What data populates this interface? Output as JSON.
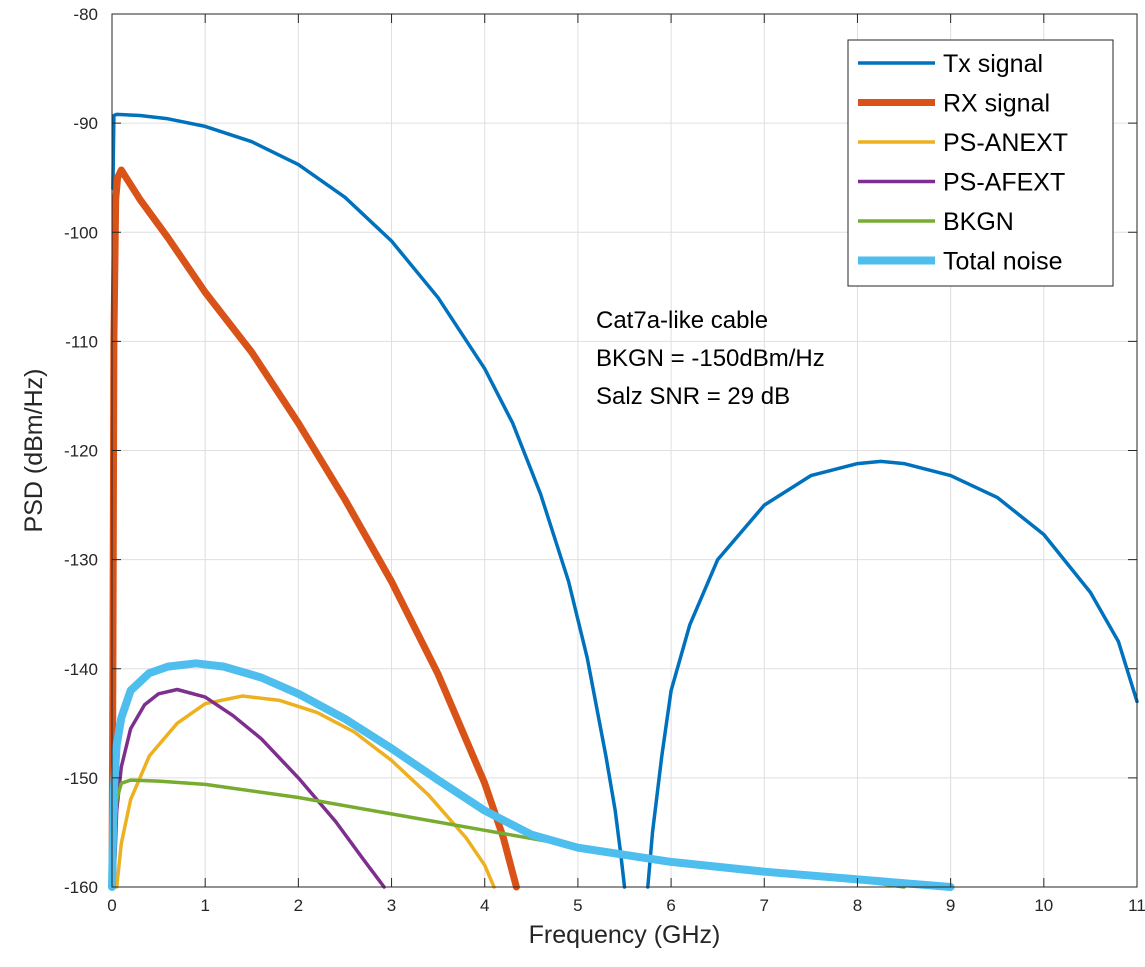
{
  "chart_data": {
    "type": "line",
    "title": "",
    "xlabel": "Frequency (GHz)",
    "ylabel": "PSD (dBm/Hz)",
    "xlim": [
      0,
      11
    ],
    "ylim": [
      -160,
      -80
    ],
    "xticks": [
      0,
      1,
      2,
      3,
      4,
      5,
      6,
      7,
      8,
      9,
      10,
      11
    ],
    "yticks": [
      -160,
      -150,
      -140,
      -130,
      -120,
      -110,
      -100,
      -90,
      -80
    ],
    "xtick_labels": [
      "0",
      "1",
      "2",
      "3",
      "4",
      "5",
      "6",
      "7",
      "8",
      "9",
      "10",
      "11"
    ],
    "ytick_labels": [
      "-160",
      "-150",
      "-140",
      "-130",
      "-120",
      "-110",
      "-100",
      "-90",
      "-80"
    ],
    "grid": true,
    "legend_position": "top-right",
    "annotation_lines": [
      "Cat7a-like cable",
      "BKGN = -150dBm/Hz",
      "Salz SNR = 29 dB"
    ],
    "series": [
      {
        "name": "Tx signal",
        "color": "#0072BD",
        "x": [
          0.01,
          0.02,
          0.05,
          0.3,
          0.6,
          1.0,
          1.5,
          2.0,
          2.5,
          3.0,
          3.5,
          4.0,
          4.3,
          4.6,
          4.9,
          5.1,
          5.3,
          5.4,
          5.46,
          5.5
        ],
        "y": [
          -96,
          -89.3,
          -89.2,
          -89.3,
          -89.6,
          -90.3,
          -91.7,
          -93.8,
          -96.8,
          -100.8,
          -106.0,
          -112.5,
          -117.5,
          -124.0,
          -132.0,
          -139.0,
          -148.0,
          -153.0,
          -157.0,
          -160.0
        ]
      },
      {
        "name": "Tx signal sidelobe",
        "color": "#0072BD",
        "x": [
          5.75,
          5.8,
          5.9,
          6.0,
          6.2,
          6.5,
          7.0,
          7.5,
          8.0,
          8.25,
          8.5,
          9.0,
          9.5,
          10.0,
          10.5,
          10.8,
          11.0
        ],
        "y": [
          -160.0,
          -155.0,
          -148.0,
          -142.0,
          -136.0,
          -130.0,
          -125.0,
          -122.3,
          -121.2,
          -121.0,
          -121.2,
          -122.3,
          -124.3,
          -127.7,
          -133.0,
          -137.5,
          -143.0
        ]
      },
      {
        "name": "RX signal",
        "color": "#D95319",
        "x": [
          0.0,
          0.01,
          0.02,
          0.04,
          0.06,
          0.1,
          0.3,
          0.6,
          1.0,
          1.5,
          2.0,
          2.5,
          3.0,
          3.5,
          4.0,
          4.2,
          4.34
        ],
        "y": [
          -160.0,
          -140.0,
          -110.0,
          -97.0,
          -95.0,
          -94.3,
          -97.0,
          -100.5,
          -105.5,
          -111.0,
          -117.5,
          -124.5,
          -132.0,
          -140.5,
          -150.5,
          -155.5,
          -160.0
        ]
      },
      {
        "name": "PS-ANEXT",
        "color": "#EDB120",
        "x": [
          0.05,
          0.1,
          0.2,
          0.4,
          0.7,
          1.0,
          1.4,
          1.8,
          2.2,
          2.6,
          3.0,
          3.4,
          3.8,
          4.0,
          4.1
        ],
        "y": [
          -160.0,
          -156.0,
          -152.0,
          -148.0,
          -145.0,
          -143.2,
          -142.5,
          -142.9,
          -144.0,
          -145.8,
          -148.4,
          -151.6,
          -155.5,
          -158.0,
          -160.0
        ]
      },
      {
        "name": "PS-AFEXT",
        "color": "#7E2F8E",
        "x": [
          0.02,
          0.05,
          0.1,
          0.2,
          0.35,
          0.5,
          0.7,
          1.0,
          1.3,
          1.6,
          2.0,
          2.4,
          2.7,
          2.92
        ],
        "y": [
          -160.0,
          -153.0,
          -149.0,
          -145.5,
          -143.3,
          -142.3,
          -141.9,
          -142.6,
          -144.3,
          -146.4,
          -150.0,
          -154.0,
          -157.5,
          -160.0
        ]
      },
      {
        "name": "BKGN",
        "color": "#77AC30",
        "x": [
          0.0,
          0.05,
          0.1,
          0.2,
          0.5,
          1.0,
          2.0,
          3.0,
          4.0,
          5.0,
          6.0,
          7.0,
          8.0,
          8.5
        ],
        "y": [
          -160.0,
          -152.0,
          -150.5,
          -150.2,
          -150.3,
          -150.6,
          -151.8,
          -153.3,
          -154.8,
          -156.3,
          -157.7,
          -158.6,
          -159.4,
          -160.0
        ]
      },
      {
        "name": "Total noise",
        "color": "#4DBEEE",
        "x": [
          0.0,
          0.02,
          0.05,
          0.1,
          0.2,
          0.4,
          0.6,
          0.9,
          1.2,
          1.6,
          2.0,
          2.5,
          3.0,
          3.5,
          4.0,
          4.5,
          5.0,
          6.0,
          7.0,
          8.0,
          9.0
        ],
        "y": [
          -160.0,
          -151.0,
          -147.0,
          -144.5,
          -142.0,
          -140.4,
          -139.8,
          -139.5,
          -139.8,
          -140.8,
          -142.3,
          -144.6,
          -147.3,
          -150.2,
          -153.0,
          -155.2,
          -156.4,
          -157.7,
          -158.6,
          -159.3,
          -160.0
        ]
      }
    ],
    "legend": [
      {
        "name": "Tx signal",
        "color": "#0072BD"
      },
      {
        "name": "RX signal",
        "color": "#D95319"
      },
      {
        "name": "PS-ANEXT",
        "color": "#EDB120"
      },
      {
        "name": "PS-AFEXT",
        "color": "#7E2F8E"
      },
      {
        "name": "BKGN",
        "color": "#77AC30"
      },
      {
        "name": "Total noise",
        "color": "#4DBEEE"
      }
    ]
  }
}
